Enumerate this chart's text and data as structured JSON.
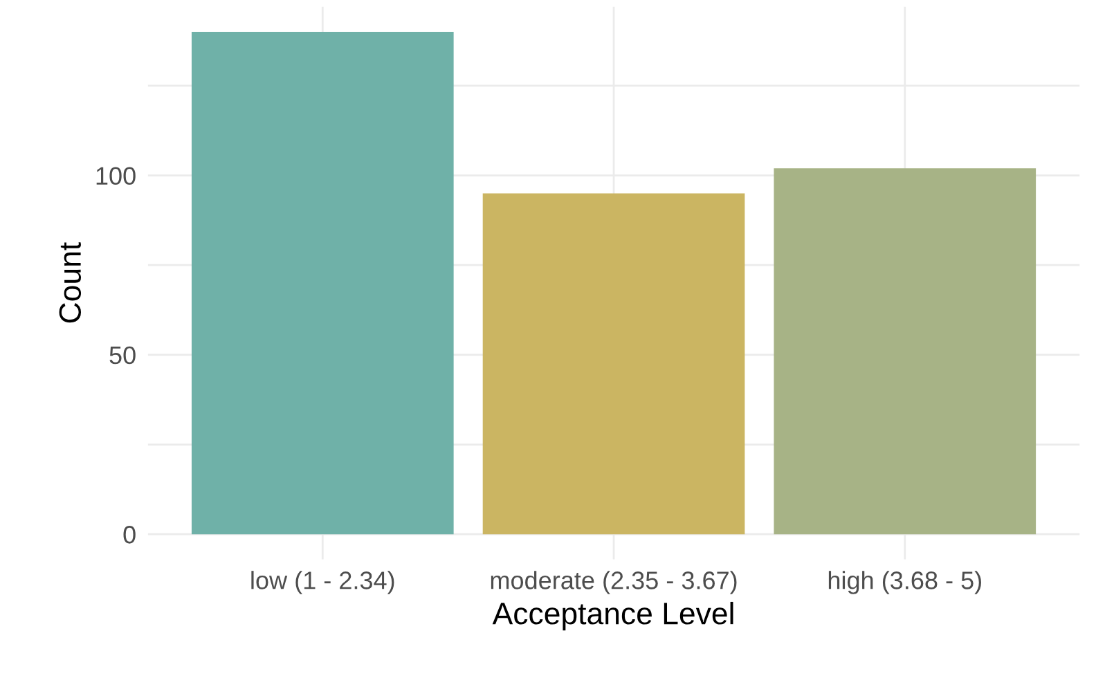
{
  "chart_data": {
    "type": "bar",
    "xlabel": "Acceptance Level",
    "ylabel": "Count",
    "categories": [
      "low (1 - 2.34)",
      "moderate (2.35 - 3.67)",
      "high (3.68 - 5)"
    ],
    "values": [
      140,
      95,
      102
    ],
    "colors": [
      "#6fb1a8",
      "#cbb562",
      "#a7b386"
    ],
    "ylim": [
      -7,
      147
    ],
    "yticks": [
      0,
      {
        "value": 25,
        "label": null
      },
      50,
      {
        "value": 75,
        "label": null
      },
      100,
      {
        "value": 125,
        "label": null
      }
    ],
    "grid": true
  }
}
